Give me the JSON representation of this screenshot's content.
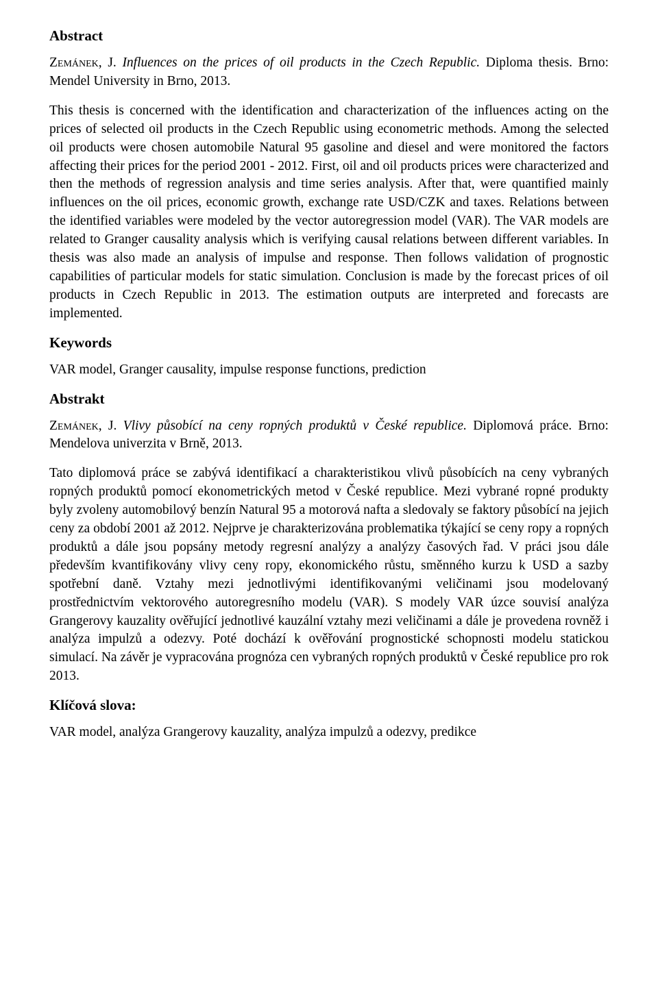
{
  "abstract_en": {
    "heading": "Abstract",
    "citation_author": "Zemánek",
    "citation_initial": ", J. ",
    "citation_title": "Influences on the prices of oil products in the Czech Republic.",
    "citation_tail": " Diploma thesis. Brno: Mendel University in Brno, 2013.",
    "body": "This thesis is concerned with the identification and characterization of the influences acting on the prices of selected oil products in the Czech Republic using econometric methods. Among the selected oil products were chosen automobile Natural 95 gasoline and diesel and were monitored the factors affecting their prices for the period 2001 - 2012. First, oil and oil products prices were characterized and then the methods of regression analysis and time series analysis. After that, were quantified mainly influences on the oil prices, economic growth, exchange rate USD/CZK and taxes. Relations between the identified variables were modeled by the vector autoregression model (VAR). The VAR models are related to Granger causality analysis which is verifying causal relations between different variables. In thesis was also made an analysis of impulse and response. Then follows validation of prognostic capabilities of particular models for static simulation. Conclusion is made by the forecast prices of oil products in Czech Republic in 2013. The estimation outputs are interpreted and forecasts are implemented."
  },
  "keywords_en": {
    "heading": "Keywords",
    "text": "VAR model, Granger causality, impulse response functions, prediction"
  },
  "abstract_cz": {
    "heading": "Abstrakt",
    "citation_author": "Zemánek",
    "citation_initial": ", J. ",
    "citation_title": "Vlivy působící na ceny ropných produktů v České republice.",
    "citation_tail": " Diplomová práce. Brno: Mendelova univerzita v Brně, 2013.",
    "body": "Tato diplomová práce se zabývá identifikací a charakteristikou vlivů působících na ceny vybraných ropných produktů pomocí ekonometrických metod v České republice. Mezi vybrané ropné produkty byly zvoleny automobilový benzín Natural 95 a motorová nafta a sledovaly se faktory působící na jejich ceny za období 2001 až 2012. Nejprve je charakterizována problematika týkající se ceny ropy a ropných produktů a dále jsou popsány metody regresní analýzy a analýzy časových řad. V práci jsou dále především kvantifikovány vlivy ceny ropy, ekonomického růstu, směnného kurzu k USD a sazby spotřební daně. Vztahy mezi jednotlivými identifikovanými veličinami jsou modelovaný prostřednictvím vektorového autoregresního modelu (VAR). S modely VAR úzce souvisí analýza Grangerovy kauzality ověřující jednotlivé kauzální vztahy mezi veličinami a dále je provedena rovněž i analýza impulzů a odezvy. Poté dochází k ověřování prognostické schopnosti modelu statickou simulací. Na závěr je vypracována prognóza cen vybraných ropných produktů v České republice pro rok 2013."
  },
  "keywords_cz": {
    "heading": "Klíčová slova:",
    "text": "VAR model, analýza Grangerovy kauzality, analýza impulzů a odezvy, predikce"
  }
}
